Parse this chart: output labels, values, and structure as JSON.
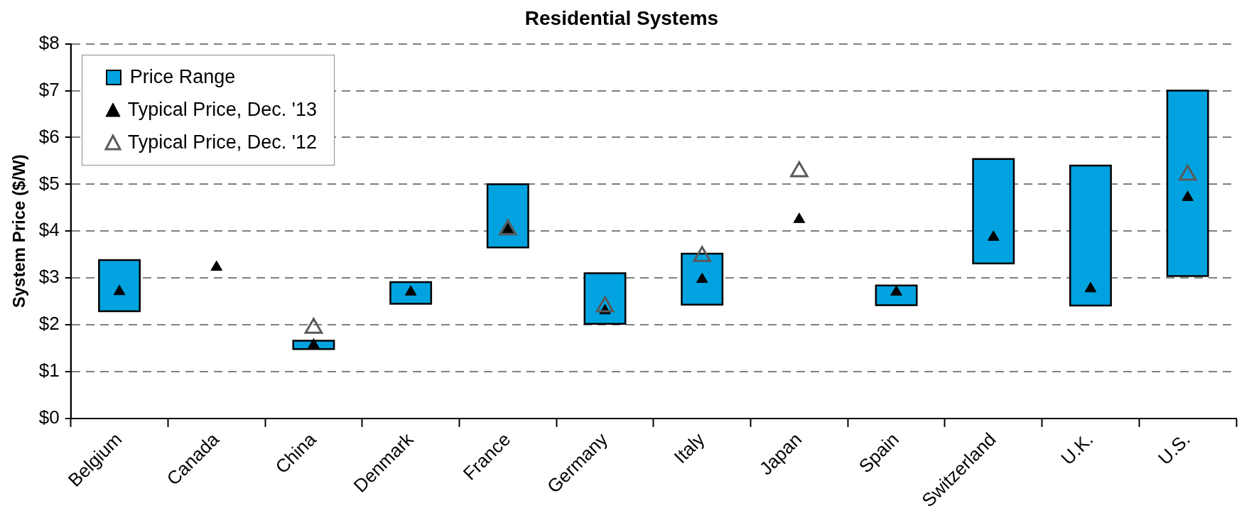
{
  "chart_data": {
    "type": "bar",
    "title": "Residential Systems",
    "ylabel": "System Price ($/W)",
    "categories": [
      "Belgium",
      "Canada",
      "China",
      "Denmark",
      "France",
      "Germany",
      "Italy",
      "Japan",
      "Spain",
      "Switzerland",
      "U.K.",
      "U.S."
    ],
    "series": [
      {
        "name": "Price Range",
        "type": "bar",
        "color": "#00a3e0",
        "base": [
          2.29,
          null,
          1.48,
          2.45,
          3.65,
          2.02,
          2.43,
          null,
          2.42,
          3.31,
          2.41,
          3.04
        ],
        "values": [
          1.09,
          null,
          0.18,
          0.46,
          1.35,
          1.08,
          1.09,
          null,
          0.42,
          2.23,
          2.99,
          3.96
        ]
      },
      {
        "name": "Typical Price, Dec. '13",
        "type": "scatter",
        "color": "#000000",
        "values": [
          2.71,
          3.23,
          1.57,
          2.7,
          4.03,
          2.3,
          2.97,
          4.25,
          2.7,
          3.87,
          2.77,
          4.72
        ]
      },
      {
        "name": "Typical Price, Dec. '12",
        "type": "scatter",
        "color": "#595959",
        "values": [
          null,
          null,
          1.93,
          null,
          4.03,
          2.39,
          3.46,
          5.27,
          null,
          null,
          null,
          5.2
        ]
      }
    ],
    "ylim": [
      0,
      8
    ],
    "yticks": [
      {
        "value": 0,
        "label": "$0"
      },
      {
        "value": 1,
        "label": "$1"
      },
      {
        "value": 2,
        "label": "$2"
      },
      {
        "value": 3,
        "label": "$3"
      },
      {
        "value": 4,
        "label": "$4"
      },
      {
        "value": 5,
        "label": "$5"
      },
      {
        "value": 6,
        "label": "$6"
      },
      {
        "value": 7,
        "label": "$7"
      },
      {
        "value": 8,
        "label": "$8"
      }
    ],
    "grid": "y",
    "legend": "top left",
    "marker": "triangle"
  }
}
